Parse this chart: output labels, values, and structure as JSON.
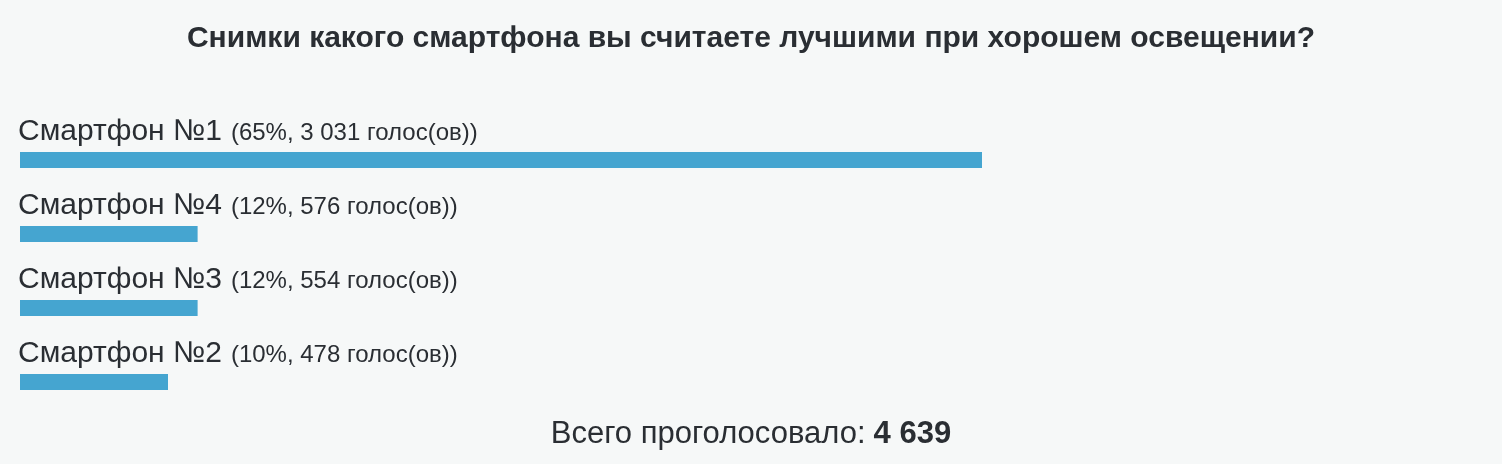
{
  "chart_data": {
    "type": "bar",
    "orientation": "horizontal",
    "title": "Снимки какого смартфона вы считаете лучшими при хорошем освещении?",
    "categories": [
      "Смартфон №1",
      "Смартфон №4",
      "Смартфон №3",
      "Смартфон №2"
    ],
    "values": [
      65,
      12,
      12,
      10
    ],
    "value_labels": [
      "(65%, 3 031 голос(ов))",
      "(12%, 576 голос(ов))",
      "(12%, 554 голос(ов))",
      "(10%, 478 голос(ов))"
    ],
    "color": "#45a5d0",
    "tick_labels": false,
    "annotations": [
      "Всего проголосовало:",
      "4 639"
    ]
  }
}
